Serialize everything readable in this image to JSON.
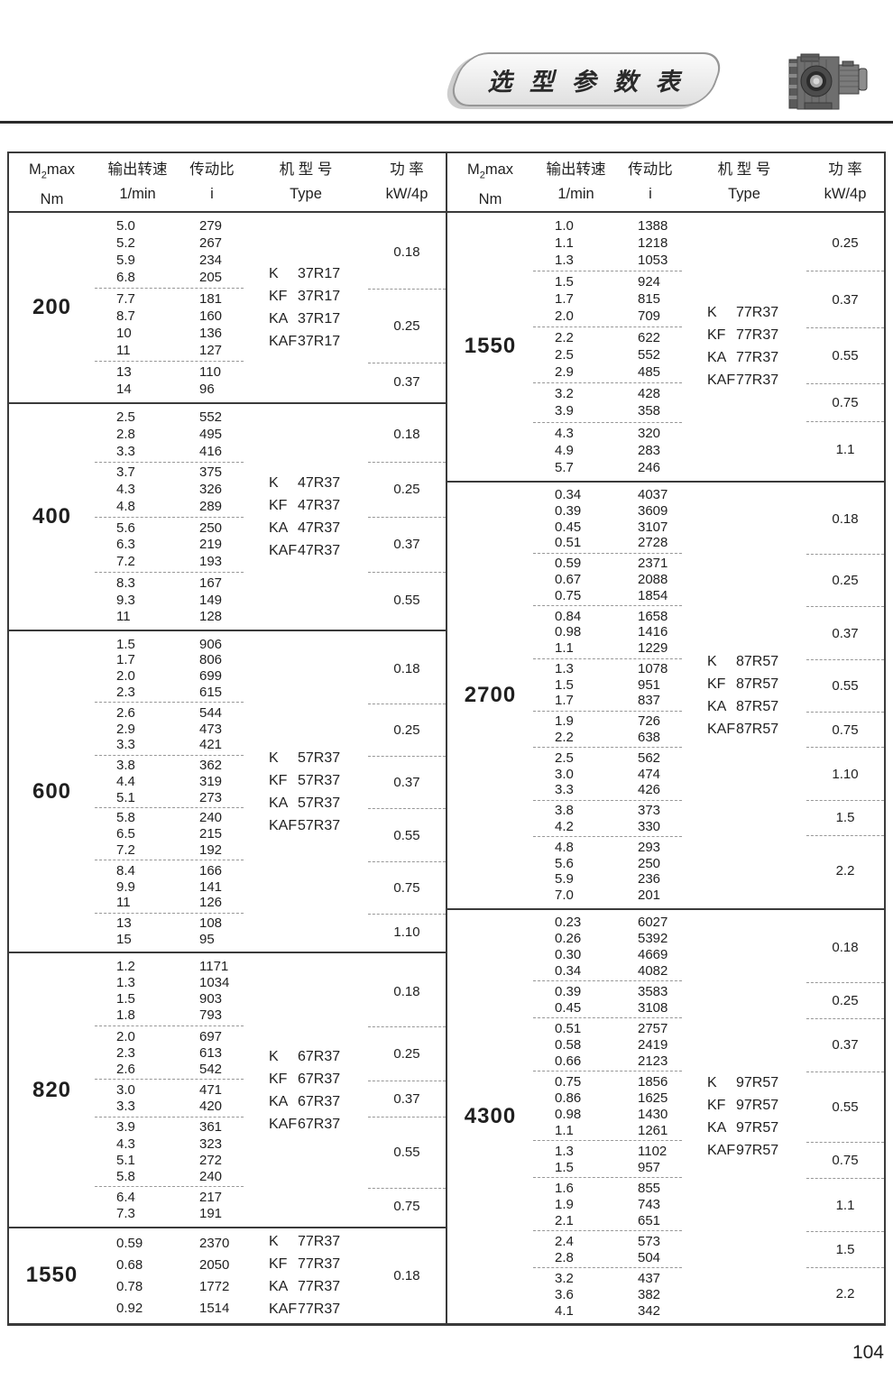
{
  "banner": {
    "title": "选 型 参 数 表"
  },
  "page_number": "104",
  "gearbox_image": "helical-bevel-gearmotor-photo",
  "table_header": {
    "torque_m": "M",
    "torque_sub": "2",
    "torque_max": "max",
    "torque_unit": "Nm",
    "speed_label": "输出转速",
    "speed_unit": "1/min",
    "ratio_label": "传动比",
    "ratio_unit": "i",
    "type_label": "机 型 号",
    "type_unit": "Type",
    "power_label": "功 率",
    "power_unit": "kW/4p"
  },
  "left_sections": [
    {
      "torque": "200",
      "types": [
        {
          "prefix": "K",
          "model": "37R17"
        },
        {
          "prefix": "KF",
          "model": "37R17"
        },
        {
          "prefix": "KA",
          "model": "37R17"
        },
        {
          "prefix": "KAF",
          "model": "37R17"
        }
      ],
      "groups": [
        {
          "power": "0.18",
          "rows": [
            {
              "speed": "5.0",
              "ratio": "279"
            },
            {
              "speed": "5.2",
              "ratio": "267"
            },
            {
              "speed": "5.9",
              "ratio": "234"
            },
            {
              "speed": "6.8",
              "ratio": "205"
            }
          ]
        },
        {
          "power": "0.25",
          "rows": [
            {
              "speed": "7.7",
              "ratio": "181"
            },
            {
              "speed": "8.7",
              "ratio": "160"
            },
            {
              "speed": "10",
              "ratio": "136"
            },
            {
              "speed": "11",
              "ratio": "127"
            }
          ]
        },
        {
          "power": "0.37",
          "rows": [
            {
              "speed": "13",
              "ratio": "110"
            },
            {
              "speed": "14",
              "ratio": "96"
            }
          ]
        }
      ]
    },
    {
      "torque": "400",
      "types": [
        {
          "prefix": "K",
          "model": "47R37"
        },
        {
          "prefix": "KF",
          "model": "47R37"
        },
        {
          "prefix": "KA",
          "model": "47R37"
        },
        {
          "prefix": "KAF",
          "model": "47R37"
        }
      ],
      "groups": [
        {
          "power": "0.18",
          "rows": [
            {
              "speed": "2.5",
              "ratio": "552"
            },
            {
              "speed": "2.8",
              "ratio": "495"
            },
            {
              "speed": "3.3",
              "ratio": "416"
            }
          ]
        },
        {
          "power": "0.25",
          "rows": [
            {
              "speed": "3.7",
              "ratio": "375"
            },
            {
              "speed": "4.3",
              "ratio": "326"
            },
            {
              "speed": "4.8",
              "ratio": "289"
            }
          ]
        },
        {
          "power": "0.37",
          "rows": [
            {
              "speed": "5.6",
              "ratio": "250"
            },
            {
              "speed": "6.3",
              "ratio": "219"
            },
            {
              "speed": "7.2",
              "ratio": "193"
            }
          ]
        },
        {
          "power": "0.55",
          "rows": [
            {
              "speed": "8.3",
              "ratio": "167"
            },
            {
              "speed": "9.3",
              "ratio": "149"
            },
            {
              "speed": "11",
              "ratio": "128"
            }
          ]
        }
      ]
    },
    {
      "torque": "600",
      "types": [
        {
          "prefix": "K",
          "model": "57R37"
        },
        {
          "prefix": "KF",
          "model": "57R37"
        },
        {
          "prefix": "KA",
          "model": "57R37"
        },
        {
          "prefix": "KAF",
          "model": "57R37"
        }
      ],
      "groups": [
        {
          "power": "0.18",
          "rows": [
            {
              "speed": "1.5",
              "ratio": "906"
            },
            {
              "speed": "1.7",
              "ratio": "806"
            },
            {
              "speed": "2.0",
              "ratio": "699"
            },
            {
              "speed": "2.3",
              "ratio": "615"
            }
          ]
        },
        {
          "power": "0.25",
          "rows": [
            {
              "speed": "2.6",
              "ratio": "544"
            },
            {
              "speed": "2.9",
              "ratio": "473"
            },
            {
              "speed": "3.3",
              "ratio": "421"
            }
          ]
        },
        {
          "power": "0.37",
          "rows": [
            {
              "speed": "3.8",
              "ratio": "362"
            },
            {
              "speed": "4.4",
              "ratio": "319"
            },
            {
              "speed": "5.1",
              "ratio": "273"
            }
          ]
        },
        {
          "power": "0.55",
          "rows": [
            {
              "speed": "5.8",
              "ratio": "240"
            },
            {
              "speed": "6.5",
              "ratio": "215"
            },
            {
              "speed": "7.2",
              "ratio": "192"
            }
          ]
        },
        {
          "power": "0.75",
          "rows": [
            {
              "speed": "8.4",
              "ratio": "166"
            },
            {
              "speed": "9.9",
              "ratio": "141"
            },
            {
              "speed": "11",
              "ratio": "126"
            }
          ]
        },
        {
          "power": "1.10",
          "rows": [
            {
              "speed": "13",
              "ratio": "108"
            },
            {
              "speed": "15",
              "ratio": "95"
            }
          ]
        }
      ]
    },
    {
      "torque": "820",
      "types": [
        {
          "prefix": "K",
          "model": "67R37"
        },
        {
          "prefix": "KF",
          "model": "67R37"
        },
        {
          "prefix": "KA",
          "model": "67R37"
        },
        {
          "prefix": "KAF",
          "model": "67R37"
        }
      ],
      "groups": [
        {
          "power": "0.18",
          "rows": [
            {
              "speed": "1.2",
              "ratio": "1171"
            },
            {
              "speed": "1.3",
              "ratio": "1034"
            },
            {
              "speed": "1.5",
              "ratio": "903"
            },
            {
              "speed": "1.8",
              "ratio": "793"
            }
          ]
        },
        {
          "power": "0.25",
          "rows": [
            {
              "speed": "2.0",
              "ratio": "697"
            },
            {
              "speed": "2.3",
              "ratio": "613"
            },
            {
              "speed": "2.6",
              "ratio": "542"
            }
          ]
        },
        {
          "power": "0.37",
          "rows": [
            {
              "speed": "3.0",
              "ratio": "471"
            },
            {
              "speed": "3.3",
              "ratio": "420"
            }
          ]
        },
        {
          "power": "0.55",
          "rows": [
            {
              "speed": "3.9",
              "ratio": "361"
            },
            {
              "speed": "4.3",
              "ratio": "323"
            },
            {
              "speed": "5.1",
              "ratio": "272"
            },
            {
              "speed": "5.8",
              "ratio": "240"
            }
          ]
        },
        {
          "power": "0.75",
          "rows": [
            {
              "speed": "6.4",
              "ratio": "217"
            },
            {
              "speed": "7.3",
              "ratio": "191"
            }
          ]
        }
      ]
    },
    {
      "torque": "1550",
      "types": [
        {
          "prefix": "K",
          "model": "77R37"
        },
        {
          "prefix": "KF",
          "model": "77R37"
        },
        {
          "prefix": "KA",
          "model": "77R37"
        },
        {
          "prefix": "KAF",
          "model": "77R37"
        }
      ],
      "groups": [
        {
          "power": "0.18",
          "rows": [
            {
              "speed": "0.59",
              "ratio": "2370"
            },
            {
              "speed": "0.68",
              "ratio": "2050"
            },
            {
              "speed": "0.78",
              "ratio": "1772"
            },
            {
              "speed": "0.92",
              "ratio": "1514"
            }
          ]
        }
      ]
    }
  ],
  "right_sections": [
    {
      "torque": "1550",
      "types": [
        {
          "prefix": "K",
          "model": "77R37"
        },
        {
          "prefix": "KF",
          "model": "77R37"
        },
        {
          "prefix": "KA",
          "model": "77R37"
        },
        {
          "prefix": "KAF",
          "model": "77R37"
        }
      ],
      "groups": [
        {
          "power": "0.25",
          "rows": [
            {
              "speed": "1.0",
              "ratio": "1388"
            },
            {
              "speed": "1.1",
              "ratio": "1218"
            },
            {
              "speed": "1.3",
              "ratio": "1053"
            }
          ]
        },
        {
          "power": "0.37",
          "rows": [
            {
              "speed": "1.5",
              "ratio": "924"
            },
            {
              "speed": "1.7",
              "ratio": "815"
            },
            {
              "speed": "2.0",
              "ratio": "709"
            }
          ]
        },
        {
          "power": "0.55",
          "rows": [
            {
              "speed": "2.2",
              "ratio": "622"
            },
            {
              "speed": "2.5",
              "ratio": "552"
            },
            {
              "speed": "2.9",
              "ratio": "485"
            }
          ]
        },
        {
          "power": "0.75",
          "rows": [
            {
              "speed": "3.2",
              "ratio": "428"
            },
            {
              "speed": "3.9",
              "ratio": "358"
            }
          ]
        },
        {
          "power": "1.1",
          "rows": [
            {
              "speed": "4.3",
              "ratio": "320"
            },
            {
              "speed": "4.9",
              "ratio": "283"
            },
            {
              "speed": "5.7",
              "ratio": "246"
            }
          ]
        }
      ]
    },
    {
      "torque": "2700",
      "types": [
        {
          "prefix": "K",
          "model": "87R57"
        },
        {
          "prefix": "KF",
          "model": "87R57"
        },
        {
          "prefix": "KA",
          "model": "87R57"
        },
        {
          "prefix": "KAF",
          "model": "87R57"
        }
      ],
      "groups": [
        {
          "power": "0.18",
          "rows": [
            {
              "speed": "0.34",
              "ratio": "4037"
            },
            {
              "speed": "0.39",
              "ratio": "3609"
            },
            {
              "speed": "0.45",
              "ratio": "3107"
            },
            {
              "speed": "0.51",
              "ratio": "2728"
            }
          ]
        },
        {
          "power": "0.25",
          "rows": [
            {
              "speed": "0.59",
              "ratio": "2371"
            },
            {
              "speed": "0.67",
              "ratio": "2088"
            },
            {
              "speed": "0.75",
              "ratio": "1854"
            }
          ]
        },
        {
          "power": "0.37",
          "rows": [
            {
              "speed": "0.84",
              "ratio": "1658"
            },
            {
              "speed": "0.98",
              "ratio": "1416"
            },
            {
              "speed": "1.1",
              "ratio": "1229"
            }
          ]
        },
        {
          "power": "0.55",
          "rows": [
            {
              "speed": "1.3",
              "ratio": "1078"
            },
            {
              "speed": "1.5",
              "ratio": "951"
            },
            {
              "speed": "1.7",
              "ratio": "837"
            }
          ]
        },
        {
          "power": "0.75",
          "rows": [
            {
              "speed": "1.9",
              "ratio": "726"
            },
            {
              "speed": "2.2",
              "ratio": "638"
            }
          ]
        },
        {
          "power": "1.10",
          "rows": [
            {
              "speed": "2.5",
              "ratio": "562"
            },
            {
              "speed": "3.0",
              "ratio": "474"
            },
            {
              "speed": "3.3",
              "ratio": "426"
            }
          ]
        },
        {
          "power": "1.5",
          "rows": [
            {
              "speed": "3.8",
              "ratio": "373"
            },
            {
              "speed": "4.2",
              "ratio": "330"
            }
          ]
        },
        {
          "power": "2.2",
          "rows": [
            {
              "speed": "4.8",
              "ratio": "293"
            },
            {
              "speed": "5.6",
              "ratio": "250"
            },
            {
              "speed": "5.9",
              "ratio": "236"
            },
            {
              "speed": "7.0",
              "ratio": "201"
            }
          ]
        }
      ]
    },
    {
      "torque": "4300",
      "types": [
        {
          "prefix": "K",
          "model": "97R57"
        },
        {
          "prefix": "KF",
          "model": "97R57"
        },
        {
          "prefix": "KA",
          "model": "97R57"
        },
        {
          "prefix": "KAF",
          "model": "97R57"
        }
      ],
      "groups": [
        {
          "power": "0.18",
          "rows": [
            {
              "speed": "0.23",
              "ratio": "6027"
            },
            {
              "speed": "0.26",
              "ratio": "5392"
            },
            {
              "speed": "0.30",
              "ratio": "4669"
            },
            {
              "speed": "0.34",
              "ratio": "4082"
            }
          ]
        },
        {
          "power": "0.25",
          "rows": [
            {
              "speed": "0.39",
              "ratio": "3583"
            },
            {
              "speed": "0.45",
              "ratio": "3108"
            }
          ]
        },
        {
          "power": "0.37",
          "rows": [
            {
              "speed": "0.51",
              "ratio": "2757"
            },
            {
              "speed": "0.58",
              "ratio": "2419"
            },
            {
              "speed": "0.66",
              "ratio": "2123"
            }
          ]
        },
        {
          "power": "0.55",
          "rows": [
            {
              "speed": "0.75",
              "ratio": "1856"
            },
            {
              "speed": "0.86",
              "ratio": "1625"
            },
            {
              "speed": "0.98",
              "ratio": "1430"
            },
            {
              "speed": "1.1",
              "ratio": "1261"
            }
          ]
        },
        {
          "power": "0.75",
          "rows": [
            {
              "speed": "1.3",
              "ratio": "1102"
            },
            {
              "speed": "1.5",
              "ratio": "957"
            }
          ]
        },
        {
          "power": "1.1",
          "rows": [
            {
              "speed": "1.6",
              "ratio": "855"
            },
            {
              "speed": "1.9",
              "ratio": "743"
            },
            {
              "speed": "2.1",
              "ratio": "651"
            }
          ]
        },
        {
          "power": "1.5",
          "rows": [
            {
              "speed": "2.4",
              "ratio": "573"
            },
            {
              "speed": "2.8",
              "ratio": "504"
            }
          ]
        },
        {
          "power": "2.2",
          "rows": [
            {
              "speed": "3.2",
              "ratio": "437"
            },
            {
              "speed": "3.6",
              "ratio": "382"
            },
            {
              "speed": "4.1",
              "ratio": "342"
            }
          ]
        }
      ]
    }
  ]
}
